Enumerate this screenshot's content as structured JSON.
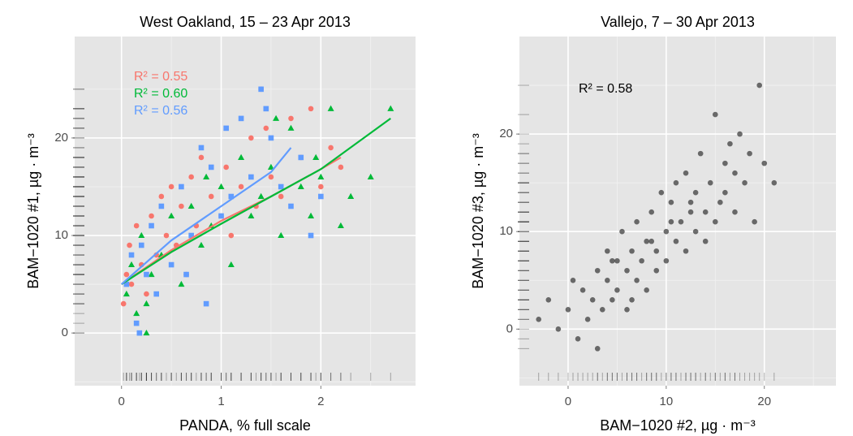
{
  "chart_data": [
    {
      "type": "scatter",
      "title": "West Oakland, 15 – 23 Apr 2013",
      "xlabel": "PANDA, % full scale",
      "ylabel": "BAM−1020 #1, µg · m⁻³",
      "xlim": [
        -0.47,
        2.95
      ],
      "ylim": [
        -5.4,
        30.4
      ],
      "xticks": [
        0,
        1,
        2
      ],
      "yticks": [
        0,
        10,
        20
      ],
      "grid": true,
      "rug": true,
      "series": [
        {
          "color": "#F8766D",
          "shape": "circle",
          "x": [
            0.02,
            0.05,
            0.08,
            0.1,
            0.15,
            0.2,
            0.25,
            0.3,
            0.35,
            0.4,
            0.45,
            0.5,
            0.55,
            0.6,
            0.7,
            0.75,
            0.8,
            0.9,
            1.0,
            1.05,
            1.1,
            1.2,
            1.3,
            1.35,
            1.4,
            1.5,
            1.6,
            1.7,
            1.8,
            1.9,
            2.0,
            2.1,
            2.2,
            1.45,
            0.65
          ],
          "y": [
            3,
            6,
            9,
            5,
            11,
            7,
            4,
            12,
            8,
            14,
            10,
            15,
            9,
            13,
            16,
            11,
            18,
            14,
            12,
            17,
            10,
            15,
            20,
            13,
            25,
            16,
            14,
            22,
            18,
            23,
            15,
            19,
            17,
            21,
            6
          ]
        },
        {
          "color": "#00BA38",
          "shape": "triangle",
          "x": [
            0.05,
            0.1,
            0.15,
            0.2,
            0.25,
            0.3,
            0.4,
            0.5,
            0.6,
            0.7,
            0.8,
            0.9,
            1.0,
            1.1,
            1.2,
            1.3,
            1.4,
            1.5,
            1.6,
            1.7,
            1.8,
            1.9,
            2.0,
            2.1,
            2.2,
            2.3,
            2.5,
            2.7,
            0.25,
            0.85,
            1.55,
            1.95
          ],
          "y": [
            4,
            7,
            2,
            10,
            0,
            6,
            8,
            12,
            5,
            13,
            9,
            11,
            15,
            7,
            18,
            12,
            14,
            17,
            10,
            21,
            15,
            12,
            16,
            23,
            11,
            14,
            16,
            23,
            3,
            16,
            22,
            18
          ]
        },
        {
          "color": "#619CFF",
          "shape": "square",
          "x": [
            0.05,
            0.1,
            0.15,
            0.2,
            0.25,
            0.3,
            0.35,
            0.4,
            0.5,
            0.6,
            0.7,
            0.8,
            0.85,
            0.9,
            1.0,
            1.1,
            1.2,
            1.3,
            1.4,
            1.5,
            1.6,
            1.7,
            1.8,
            1.9,
            2.0,
            0.65,
            1.05,
            1.45,
            0.18
          ],
          "y": [
            5,
            8,
            1,
            9,
            6,
            11,
            4,
            13,
            7,
            15,
            10,
            19,
            3,
            17,
            12,
            14,
            22,
            16,
            25,
            20,
            15,
            13,
            18,
            10,
            14,
            6,
            21,
            23,
            0
          ]
        }
      ],
      "fit_lines": [
        {
          "color": "#F8766D",
          "x": [
            0,
            0.5,
            1,
            1.5,
            2,
            2.2
          ],
          "y": [
            5,
            8.5,
            11.5,
            14,
            16.8,
            18
          ]
        },
        {
          "color": "#00BA38",
          "x": [
            0,
            0.5,
            1,
            1.5,
            2,
            2.7
          ],
          "y": [
            5,
            8.3,
            11.2,
            14,
            16.8,
            22
          ]
        },
        {
          "color": "#619CFF",
          "x": [
            0,
            0.5,
            1,
            1.5,
            1.7
          ],
          "y": [
            5,
            9.5,
            13,
            16.5,
            19
          ]
        }
      ],
      "annotations": [
        {
          "text": "R² = 0.55",
          "color": "#F8766D"
        },
        {
          "text": "R² = 0.60",
          "color": "#00BA38"
        },
        {
          "text": "R² = 0.56",
          "color": "#619CFF"
        }
      ]
    },
    {
      "type": "scatter",
      "title": "Vallejo, 7 – 30 Apr 2013",
      "xlabel": "BAM−1020 #2, µg · m⁻³",
      "ylabel": "BAM−1020 #3, µg · m⁻³",
      "xlim": [
        -4.96,
        27.3
      ],
      "ylim": [
        -5.8,
        30
      ],
      "xticks": [
        0,
        10,
        20
      ],
      "yticks": [
        0,
        10,
        20
      ],
      "grid": true,
      "rug": true,
      "series": [
        {
          "color": "#333333",
          "alpha": 0.7,
          "shape": "circle",
          "x": [
            -3,
            -2,
            -1,
            0,
            0.5,
            1,
            1.5,
            2,
            2.5,
            3,
            3,
            3.5,
            4,
            4,
            4.5,
            5,
            5,
            5.5,
            6,
            6,
            6.5,
            7,
            7,
            7.5,
            8,
            8,
            8.5,
            9,
            9,
            9.5,
            10,
            10,
            10.5,
            11,
            11,
            11.5,
            12,
            12,
            12.5,
            13,
            13,
            13.5,
            14,
            14,
            14.5,
            15,
            15,
            15.5,
            16,
            16,
            16.5,
            17,
            17,
            17.5,
            18,
            18.5,
            19,
            19.5,
            20,
            21,
            4.5,
            6.5,
            8.5,
            10.5,
            12.5
          ],
          "y": [
            1,
            3,
            0,
            2,
            5,
            -1,
            4,
            1,
            3,
            6,
            -2,
            2,
            5,
            8,
            3,
            7,
            4,
            10,
            6,
            2,
            8,
            5,
            11,
            7,
            9,
            4,
            12,
            8,
            6,
            14,
            10,
            7,
            13,
            9,
            15,
            11,
            8,
            16,
            12,
            10,
            14,
            18,
            12,
            9,
            15,
            11,
            22,
            13,
            17,
            14,
            19,
            12,
            16,
            20,
            15,
            18,
            11,
            25,
            17,
            15,
            7,
            3,
            9,
            11,
            13
          ]
        }
      ],
      "annotations": [
        {
          "text": "R² = 0.58",
          "color": "#000000"
        }
      ]
    }
  ]
}
